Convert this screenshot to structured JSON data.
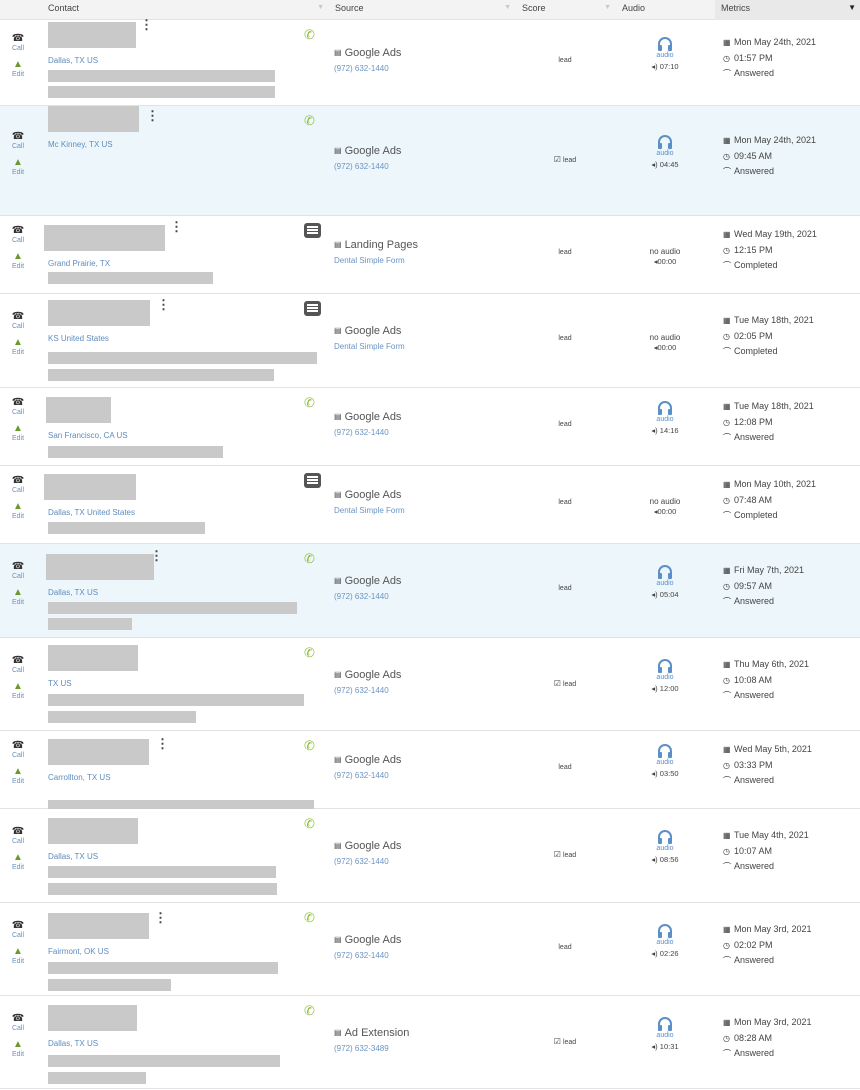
{
  "header": {
    "contact": "Contact",
    "source": "Source",
    "score": "Score",
    "audio": "Audio",
    "metrics": "Metrics"
  },
  "action_labels": {
    "call": "Call",
    "edit": "Edit"
  },
  "colors": {
    "link": "#6a93c4",
    "call_icon": "#8bbf2f",
    "audio_icon": "#5b8fc9",
    "highlight_row": "#edf7fb"
  },
  "rows": [
    {
      "location": "Dallas, TX US",
      "type_icon": "phone-incoming-icon",
      "source": "Google Ads",
      "source_sub": "(972) 632-1440",
      "source_icon": "ad-icon",
      "score": "lead",
      "score_checked": false,
      "has_audio": true,
      "audio_label": "audio",
      "duration": "07:10",
      "date": "Mon May 24th, 2021",
      "time": "01:57 PM",
      "status": "Answered"
    },
    {
      "location": "Mc Kinney, TX US",
      "type_icon": "phone-incoming-icon",
      "source": "Google Ads",
      "source_sub": "(972) 632-1440",
      "source_icon": "ad-icon",
      "score": "lead",
      "score_checked": true,
      "has_audio": true,
      "audio_label": "audio",
      "duration": "04:45",
      "date": "Mon May 24th, 2021",
      "time": "09:45 AM",
      "status": "Answered"
    },
    {
      "location": "Grand Prairie, TX",
      "type_icon": "form-icon",
      "source": "Landing Pages",
      "source_sub": "Dental Simple Form",
      "source_icon": "ad-icon",
      "score": "lead",
      "score_checked": false,
      "has_audio": false,
      "audio_label": "no audio",
      "duration": "00:00",
      "date": "Wed May 19th, 2021",
      "time": "12:15 PM",
      "status": "Completed"
    },
    {
      "location": "KS United States",
      "type_icon": "form-icon",
      "source": "Google Ads",
      "source_sub": "Dental Simple Form",
      "source_icon": "ad-icon",
      "score": "lead",
      "score_checked": false,
      "has_audio": false,
      "audio_label": "no audio",
      "duration": "00:00",
      "date": "Tue May 18th, 2021",
      "time": "02:05 PM",
      "status": "Completed"
    },
    {
      "location": "San Francisco, CA US",
      "type_icon": "phone-incoming-icon",
      "source": "Google Ads",
      "source_sub": "(972) 632-1440",
      "source_icon": "ad-icon",
      "score": "lead",
      "score_checked": false,
      "has_audio": true,
      "audio_label": "audio",
      "duration": "14:16",
      "date": "Tue May 18th, 2021",
      "time": "12:08 PM",
      "status": "Answered"
    },
    {
      "location": "Dallas, TX United States",
      "type_icon": "form-icon",
      "source": "Google Ads",
      "source_sub": "Dental Simple Form",
      "source_icon": "ad-icon",
      "score": "lead",
      "score_checked": false,
      "has_audio": false,
      "audio_label": "no audio",
      "duration": "00:00",
      "date": "Mon May 10th, 2021",
      "time": "07:48 AM",
      "status": "Completed"
    },
    {
      "location": "Dallas, TX US",
      "type_icon": "phone-incoming-icon",
      "source": "Google Ads",
      "source_sub": "(972) 632-1440",
      "source_icon": "ad-icon",
      "score": "lead",
      "score_checked": false,
      "has_audio": true,
      "audio_label": "audio",
      "duration": "05:04",
      "date": "Fri May 7th, 2021",
      "time": "09:57 AM",
      "status": "Answered"
    },
    {
      "location": "TX US",
      "type_icon": "phone-incoming-icon",
      "source": "Google Ads",
      "source_sub": "(972) 632-1440",
      "source_icon": "ad-icon",
      "score": "lead",
      "score_checked": true,
      "has_audio": true,
      "audio_label": "audio",
      "duration": "12:00",
      "date": "Thu May 6th, 2021",
      "time": "10:08 AM",
      "status": "Answered"
    },
    {
      "location": "Carrollton, TX US",
      "type_icon": "phone-incoming-icon",
      "source": "Google Ads",
      "source_sub": "(972) 632-1440",
      "source_icon": "ad-icon",
      "score": "lead",
      "score_checked": false,
      "has_audio": true,
      "audio_label": "audio",
      "duration": "03:50",
      "date": "Wed May 5th, 2021",
      "time": "03:33 PM",
      "status": "Answered"
    },
    {
      "location": "Dallas, TX US",
      "type_icon": "phone-incoming-icon",
      "source": "Google Ads",
      "source_sub": "(972) 632-1440",
      "source_icon": "ad-icon",
      "score": "lead",
      "score_checked": true,
      "has_audio": true,
      "audio_label": "audio",
      "duration": "08:56",
      "date": "Tue May 4th, 2021",
      "time": "10:07 AM",
      "status": "Answered"
    },
    {
      "location": "Fairmont, OK US",
      "type_icon": "phone-incoming-icon",
      "source": "Google Ads",
      "source_sub": "(972) 632-1440",
      "source_icon": "ad-icon",
      "score": "lead",
      "score_checked": false,
      "has_audio": true,
      "audio_label": "audio",
      "duration": "02:26",
      "date": "Mon May 3rd, 2021",
      "time": "02:02 PM",
      "status": "Answered"
    },
    {
      "location": "Dallas, TX US",
      "type_icon": "phone-incoming-icon",
      "source": "Ad Extension",
      "source_sub": "(972) 632-3489",
      "source_icon": "ad-icon",
      "score": "lead",
      "score_checked": true,
      "has_audio": true,
      "audio_label": "audio",
      "duration": "10:31",
      "date": "Mon May 3rd, 2021",
      "time": "08:28 AM",
      "status": "Answered"
    }
  ]
}
